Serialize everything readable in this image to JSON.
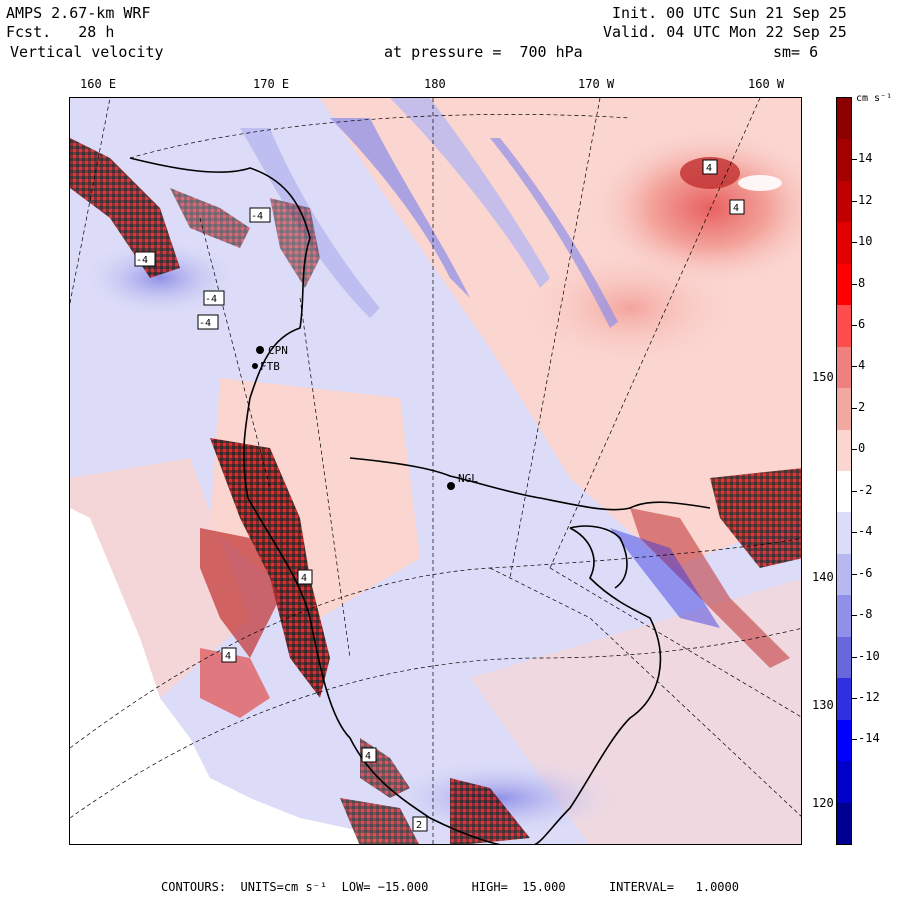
{
  "header": {
    "model": "AMPS 2.67-km WRF",
    "forecast": "Fcst.   28 h",
    "field": "Vertical velocity",
    "init": "Init. 00 UTC Sun 21 Sep 25",
    "valid": "Valid. 04 UTC Mon 22 Sep 25",
    "pressure": "at pressure =  700 hPa",
    "smoothing": "sm= 6"
  },
  "longitude_labels": [
    "160 E",
    "170 E",
    "180",
    "170 W",
    "160 W"
  ],
  "latitude_labels": [
    "150 W",
    "140 W",
    "130 W",
    "120 W"
  ],
  "colorbar": {
    "units": "cm s⁻¹",
    "tick_labels": [
      "14",
      "12",
      "10",
      "8",
      "6",
      "4",
      "2",
      "0",
      "-2",
      "-4",
      "-6",
      "-8",
      "-10",
      "-12",
      "-14"
    ],
    "colors": [
      "#8b0000",
      "#a30000",
      "#c00000",
      "#e00000",
      "#ff0000",
      "#ff4d4d",
      "#f08080",
      "#f0a8a0",
      "#fbd5d0",
      "#ffffff",
      "#dcdcf8",
      "#b8b8f0",
      "#9090e8",
      "#6868dc",
      "#3030e0",
      "#0000ff",
      "#0000c8",
      "#000090"
    ]
  },
  "stations": [
    {
      "label": "CPN"
    },
    {
      "label": "FTB"
    },
    {
      "label": "NGL"
    }
  ],
  "contour_labels": [
    "4",
    "4",
    "-4",
    "-4",
    "-4",
    "-4",
    "4",
    "4",
    "4",
    "2"
  ],
  "footer": "CONTOURS:  UNITS=cm s⁻¹  LOW= −15.000      HIGH=  15.000      INTERVAL=   1.0000"
}
